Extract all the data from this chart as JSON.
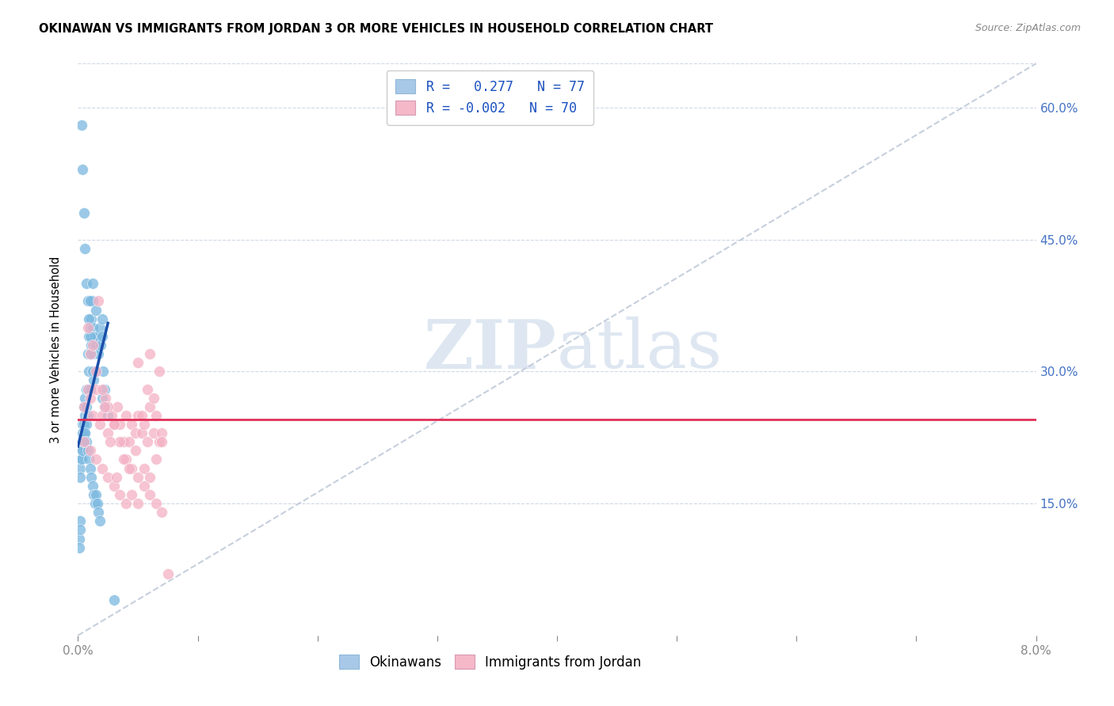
{
  "title": "OKINAWAN VS IMMIGRANTS FROM JORDAN 3 OR MORE VEHICLES IN HOUSEHOLD CORRELATION CHART",
  "source": "Source: ZipAtlas.com",
  "ylabel": "3 or more Vehicles in Household",
  "yaxis_tick_values": [
    0.15,
    0.3,
    0.45,
    0.6
  ],
  "xlim": [
    0.0,
    0.08
  ],
  "ylim": [
    0.0,
    0.65
  ],
  "okinawan_color": "#7ab8e0",
  "jordan_color": "#f4b0c4",
  "okinawan_line_color": "#1a4faa",
  "jordan_line_color": "#e03058",
  "diagonal_line_color": "#b8c4d4",
  "watermark_color": "#c8d8e8",
  "legend_blue_color": "#a8c8e8",
  "legend_pink_color": "#f4b8c8",
  "R_okinawan": 0.277,
  "N_okinawan": 77,
  "R_jordan": -0.002,
  "N_jordan": 70,
  "okinawan_x": [
    0.0003,
    0.0003,
    0.0004,
    0.0004,
    0.0005,
    0.0005,
    0.0005,
    0.0006,
    0.0006,
    0.0006,
    0.0007,
    0.0007,
    0.0007,
    0.0008,
    0.0008,
    0.0008,
    0.0009,
    0.0009,
    0.001,
    0.001,
    0.001,
    0.0011,
    0.0011,
    0.0012,
    0.0012,
    0.0013,
    0.0013,
    0.0014,
    0.0015,
    0.0015,
    0.0016,
    0.0017,
    0.0018,
    0.0019,
    0.002,
    0.002,
    0.0021,
    0.0022,
    0.0023,
    0.0025,
    0.0002,
    0.0002,
    0.0003,
    0.0004,
    0.0005,
    0.0006,
    0.0007,
    0.0008,
    0.0009,
    0.001,
    0.0011,
    0.0012,
    0.0013,
    0.0014,
    0.0015,
    0.0016,
    0.0017,
    0.0018,
    0.0003,
    0.0004,
    0.0005,
    0.0006,
    0.0007,
    0.0008,
    0.0009,
    0.001,
    0.0011,
    0.0012,
    0.0015,
    0.002,
    0.0001,
    0.0001,
    0.0002,
    0.0002,
    0.003,
    0.001,
    0.0012
  ],
  "okinawan_y": [
    0.21,
    0.2,
    0.24,
    0.23,
    0.26,
    0.24,
    0.22,
    0.27,
    0.25,
    0.23,
    0.28,
    0.26,
    0.24,
    0.32,
    0.28,
    0.25,
    0.34,
    0.3,
    0.35,
    0.32,
    0.28,
    0.36,
    0.33,
    0.38,
    0.35,
    0.32,
    0.29,
    0.34,
    0.33,
    0.3,
    0.34,
    0.32,
    0.35,
    0.33,
    0.36,
    0.34,
    0.3,
    0.28,
    0.26,
    0.25,
    0.19,
    0.18,
    0.2,
    0.21,
    0.22,
    0.23,
    0.22,
    0.21,
    0.2,
    0.19,
    0.18,
    0.17,
    0.16,
    0.15,
    0.16,
    0.15,
    0.14,
    0.13,
    0.58,
    0.53,
    0.48,
    0.44,
    0.4,
    0.38,
    0.36,
    0.34,
    0.32,
    0.3,
    0.37,
    0.27,
    0.11,
    0.1,
    0.13,
    0.12,
    0.04,
    0.38,
    0.4
  ],
  "jordan_x": [
    0.0005,
    0.0008,
    0.001,
    0.0012,
    0.0015,
    0.0018,
    0.002,
    0.0023,
    0.0025,
    0.0028,
    0.003,
    0.0033,
    0.0035,
    0.0038,
    0.004,
    0.0043,
    0.0045,
    0.0048,
    0.005,
    0.0053,
    0.0055,
    0.0058,
    0.006,
    0.0063,
    0.0065,
    0.0068,
    0.007,
    0.001,
    0.0015,
    0.002,
    0.0025,
    0.003,
    0.0035,
    0.004,
    0.0045,
    0.005,
    0.0055,
    0.006,
    0.0065,
    0.007,
    0.0005,
    0.001,
    0.0015,
    0.002,
    0.0025,
    0.003,
    0.0035,
    0.004,
    0.0045,
    0.005,
    0.0055,
    0.006,
    0.0065,
    0.007,
    0.0075,
    0.0008,
    0.0012,
    0.0017,
    0.0022,
    0.0027,
    0.0032,
    0.0038,
    0.0043,
    0.0048,
    0.0053,
    0.0058,
    0.0063,
    0.0068,
    0.006,
    0.005
  ],
  "jordan_y": [
    0.26,
    0.28,
    0.27,
    0.25,
    0.28,
    0.24,
    0.25,
    0.27,
    0.23,
    0.25,
    0.24,
    0.26,
    0.24,
    0.22,
    0.25,
    0.22,
    0.24,
    0.23,
    0.25,
    0.23,
    0.24,
    0.22,
    0.26,
    0.23,
    0.25,
    0.22,
    0.23,
    0.32,
    0.3,
    0.28,
    0.26,
    0.24,
    0.22,
    0.2,
    0.19,
    0.18,
    0.19,
    0.18,
    0.2,
    0.22,
    0.22,
    0.21,
    0.2,
    0.19,
    0.18,
    0.17,
    0.16,
    0.15,
    0.16,
    0.15,
    0.17,
    0.16,
    0.15,
    0.14,
    0.07,
    0.35,
    0.33,
    0.38,
    0.26,
    0.22,
    0.18,
    0.2,
    0.19,
    0.21,
    0.25,
    0.28,
    0.27,
    0.3,
    0.32,
    0.31
  ],
  "jordan_regression_y0": 0.245,
  "jordan_regression_y1": 0.245,
  "okinawan_line_x0": 0.0,
  "okinawan_line_y0": 0.215,
  "okinawan_line_x1": 0.0025,
  "okinawan_line_y1": 0.355
}
